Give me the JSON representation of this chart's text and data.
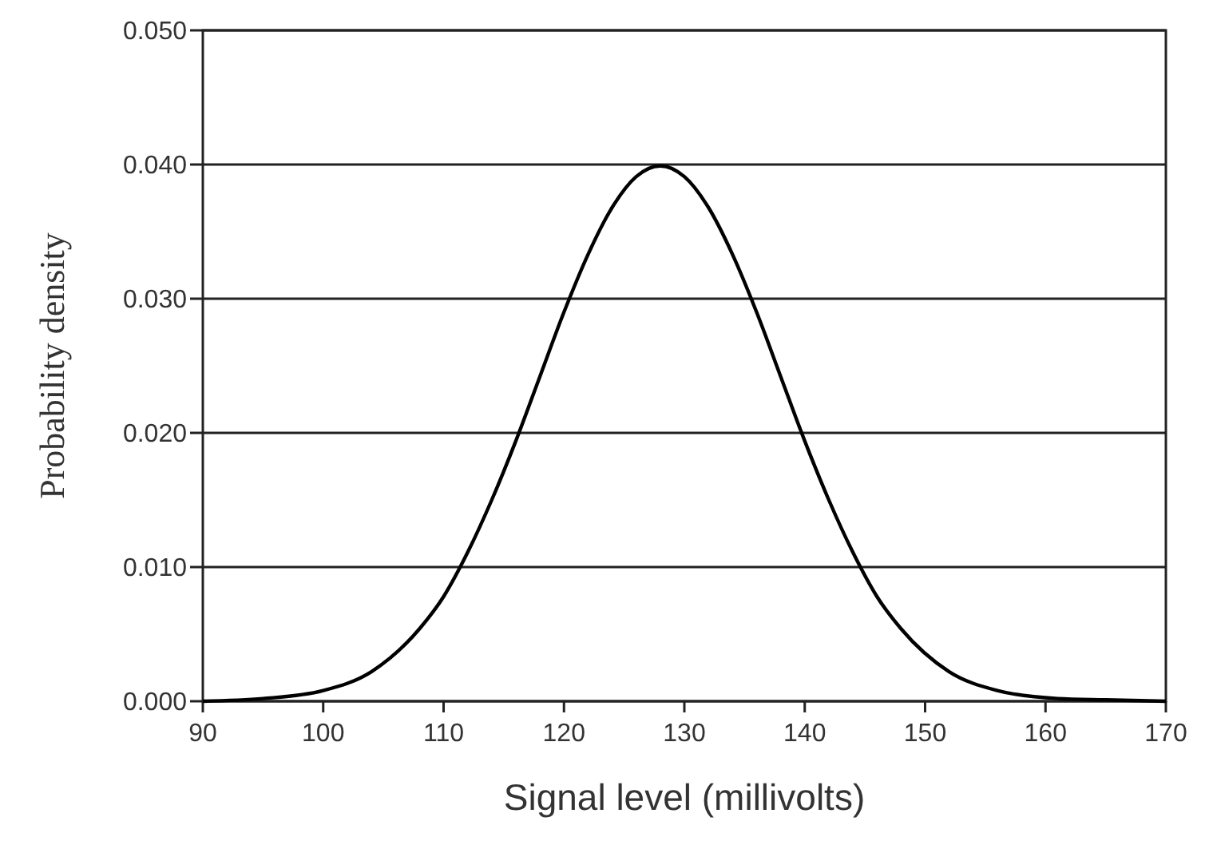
{
  "chart_data": {
    "type": "line",
    "xlabel": "Signal level (millivolts)",
    "ylabel": "Probability density",
    "x": [
      90,
      95,
      100,
      104,
      108,
      110,
      112,
      114,
      116,
      118,
      120,
      122,
      124,
      126,
      128,
      130,
      132,
      134,
      136,
      138,
      140,
      142,
      144,
      146,
      148,
      152,
      156,
      161,
      165,
      170
    ],
    "series": [
      {
        "color": "#000000",
        "values": [
          0.0,
          0.0002,
          0.0008,
          0.0022,
          0.0054,
          0.0078,
          0.0111,
          0.015,
          0.0194,
          0.0242,
          0.029,
          0.0333,
          0.0368,
          0.0391,
          0.0399,
          0.0391,
          0.0368,
          0.0333,
          0.029,
          0.0242,
          0.0194,
          0.015,
          0.0111,
          0.0078,
          0.0054,
          0.0022,
          0.0008,
          0.0002,
          0.0001,
          0.0
        ]
      }
    ],
    "xlim": [
      90,
      170
    ],
    "xticks": [
      90,
      100,
      110,
      120,
      130,
      140,
      150,
      160,
      170
    ],
    "ylim": [
      0,
      0.05
    ],
    "yticks": [
      {
        "value": 0,
        "label": "0.000"
      },
      {
        "value": 0.01,
        "label": "0.010"
      },
      {
        "value": 0.02,
        "label": "0.020"
      },
      {
        "value": 0.03,
        "label": "0.030"
      },
      {
        "value": 0.04,
        "label": "0.040"
      },
      {
        "value": 0.05,
        "label": "0.050"
      }
    ],
    "grid": "y",
    "line_style": "solid",
    "marker": "none"
  }
}
